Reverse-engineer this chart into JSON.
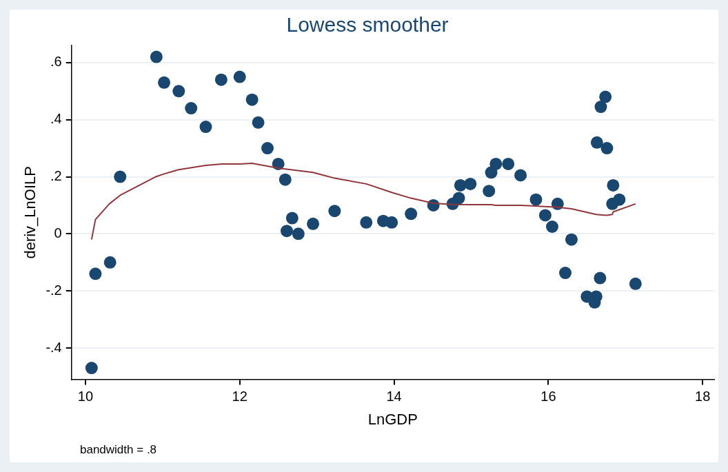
{
  "chart_data": {
    "type": "scatter",
    "title": "Lowess smoother",
    "xlabel": "LnGDP",
    "ylabel": "deriv_LnOILP",
    "annotations": [
      "bandwidth = .8"
    ],
    "xlim": [
      9.82,
      18.15
    ],
    "xticks": [
      10,
      12,
      14,
      16,
      18
    ],
    "ylim": [
      -0.51,
      0.66
    ],
    "yticks": [
      {
        "value": -0.4,
        "label": "-.4"
      },
      {
        "value": -0.2,
        "label": "-.2"
      },
      0,
      {
        "value": 0.2,
        "label": ".2"
      },
      {
        "value": 0.4,
        "label": ".4"
      },
      {
        "value": 0.6,
        "label": ".6"
      }
    ],
    "grid": "y",
    "legend": false,
    "series": [
      {
        "color": "#1a476f",
        "marker": "circle",
        "x": [
          10.08,
          10.13,
          10.32,
          10.45,
          10.92,
          11.02,
          11.21,
          11.37,
          11.56,
          11.76,
          12.0,
          12.16,
          12.24,
          12.36,
          12.5,
          12.59,
          12.68,
          12.61,
          12.76,
          12.95,
          13.23,
          13.64,
          13.86,
          13.97,
          14.22,
          14.51,
          14.76,
          14.84,
          14.86,
          14.99,
          15.23,
          15.26,
          15.32,
          15.48,
          15.64,
          15.84,
          15.96,
          16.05,
          16.12,
          16.22,
          16.3,
          16.5,
          16.62,
          16.6,
          16.67,
          16.63,
          16.68,
          16.74,
          16.76,
          16.84,
          16.83,
          16.92,
          17.13
        ],
        "values": [
          -0.47,
          -0.14,
          -0.1,
          0.2,
          0.62,
          0.53,
          0.5,
          0.44,
          0.375,
          0.54,
          0.55,
          0.47,
          0.39,
          0.3,
          0.245,
          0.19,
          0.055,
          0.01,
          0.0,
          0.035,
          0.08,
          0.04,
          0.045,
          0.04,
          0.07,
          0.1,
          0.105,
          0.125,
          0.17,
          0.175,
          0.15,
          0.215,
          0.245,
          0.245,
          0.205,
          0.12,
          0.065,
          0.025,
          0.105,
          -0.137,
          -0.02,
          -0.22,
          -0.22,
          -0.24,
          -0.155,
          0.32,
          0.445,
          0.48,
          0.3,
          0.17,
          0.105,
          0.12,
          -0.175
        ]
      },
      {
        "type": "line",
        "color": "#90353b",
        "marker": "none",
        "line_style": "solid",
        "x": [
          10.08,
          10.13,
          10.31,
          10.45,
          10.91,
          11.02,
          11.21,
          11.56,
          11.77,
          12.0,
          12.16,
          12.5,
          12.95,
          13.23,
          13.64,
          13.97,
          14.22,
          14.51,
          14.76,
          14.99,
          15.26,
          15.32,
          15.64,
          16.12,
          16.3,
          16.62,
          16.75,
          16.83,
          16.84,
          17.13
        ],
        "values": [
          -0.02,
          0.05,
          0.105,
          0.135,
          0.2,
          0.21,
          0.225,
          0.24,
          0.245,
          0.245,
          0.247,
          0.23,
          0.215,
          0.195,
          0.175,
          0.145,
          0.125,
          0.107,
          0.103,
          0.102,
          0.102,
          0.1,
          0.1,
          0.093,
          0.088,
          0.068,
          0.065,
          0.068,
          0.077,
          0.105
        ]
      }
    ]
  }
}
